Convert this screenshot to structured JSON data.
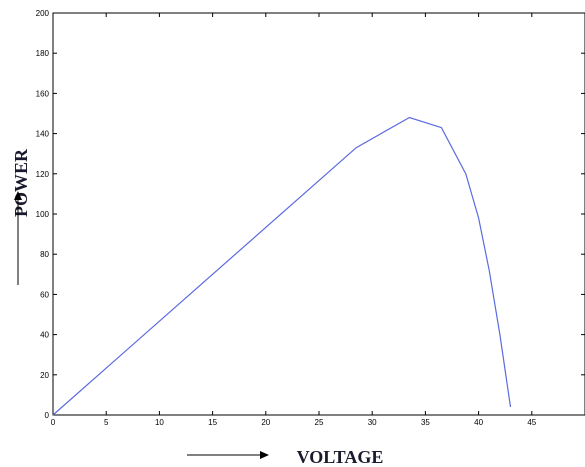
{
  "chart_data": {
    "type": "line",
    "xlabel": "VOLTAGE",
    "ylabel": "POWER",
    "xlim": [
      0,
      50
    ],
    "ylim": [
      0,
      200
    ],
    "xticks": [
      0,
      5,
      10,
      15,
      20,
      25,
      30,
      35,
      40,
      45
    ],
    "yticks": [
      0,
      20,
      40,
      60,
      80,
      100,
      120,
      140,
      160,
      180,
      200
    ],
    "grid": false,
    "line_color": "#5a6adf",
    "series": [
      {
        "x": [
          0,
          28.5,
          33.5,
          36.5,
          38.8,
          40,
          41,
          42,
          43
        ],
        "y": [
          0,
          133,
          148,
          143,
          120,
          98,
          72,
          40,
          4
        ]
      }
    ]
  }
}
